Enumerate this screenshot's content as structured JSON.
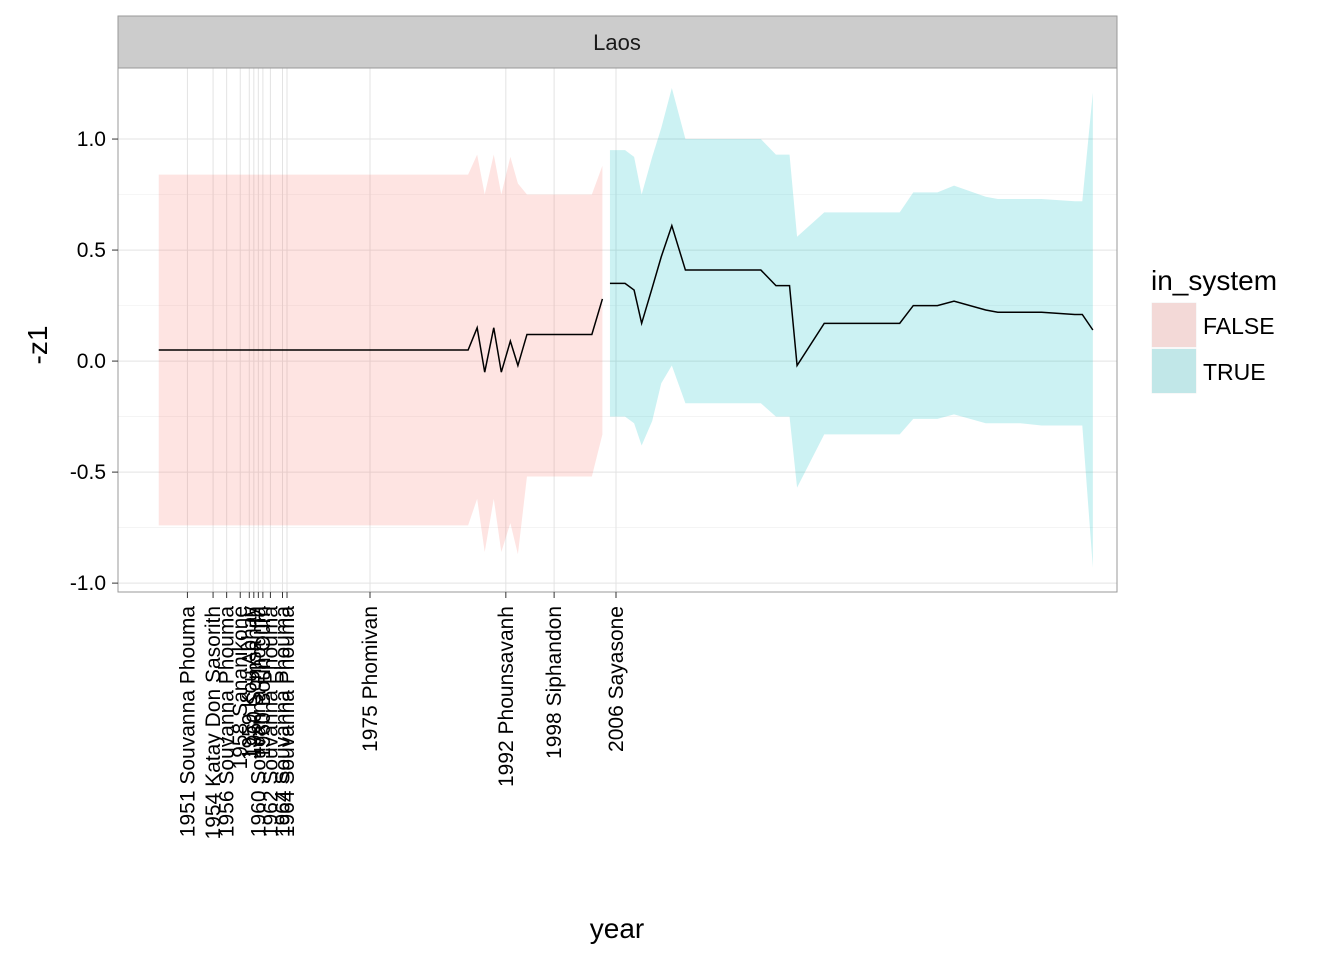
{
  "chart_data": {
    "type": "line",
    "facet": "Laos",
    "xlabel": "year",
    "ylabel": "-z1",
    "xlim": [
      1946.4,
      2012.6
    ],
    "ylim": [
      -1.04,
      1.32
    ],
    "y_ticks": [
      -1.0,
      -0.5,
      0.0,
      0.5,
      1.0
    ],
    "y_tick_labels": [
      "-1.0",
      "-0.5",
      "0.0",
      "0.5",
      "1.0"
    ],
    "x_ticks": [
      {
        "x": 1951,
        "label": "1951 Souvanna Phouma"
      },
      {
        "x": 1952.7,
        "label": "1954 Katay Don Sasorith"
      },
      {
        "x": 1953.6,
        "label": "1956 Souvanna Phouma"
      },
      {
        "x": 1954.5,
        "label": "1958 Sananikone"
      },
      {
        "x": 1955.1,
        "label": "1959 Kou Abhay"
      },
      {
        "x": 1955.4,
        "label": "1960 Somsanith"
      },
      {
        "x": 1955.7,
        "label": "1960 Souvanna Phouma"
      },
      {
        "x": 1956.0,
        "label": "1960 Boun Oum"
      },
      {
        "x": 1956.5,
        "label": "1962 Souvanna Phouma"
      },
      {
        "x": 1957.3,
        "label": "1964 Souvanna Phouma"
      },
      {
        "x": 1957.6,
        "label": "1964 Souvanna Phouma"
      },
      {
        "x": 1963.1,
        "label": "1975 Phomivan"
      },
      {
        "x": 1972.1,
        "label": "1992 Phounsavanh"
      },
      {
        "x": 1975.3,
        "label": "1998 Siphandon"
      },
      {
        "x": 1979.4,
        "label": "2006 Sayasone"
      }
    ],
    "legend": {
      "title": "in_system",
      "position": "right",
      "entries": [
        {
          "label": "FALSE",
          "color": "#F8766D"
        },
        {
          "label": "TRUE",
          "color": "#00BFC4"
        }
      ]
    },
    "grid": true,
    "series": [
      {
        "name": "FALSE",
        "color": "#F8766D",
        "x": [
          1949.1,
          1969.6,
          1970.2,
          1970.7,
          1971.3,
          1971.8,
          1972.4,
          1972.9,
          1973.5,
          1974.1,
          1977.3,
          1977.8,
          1978.5
        ],
        "y": [
          0.05,
          0.05,
          0.15,
          -0.05,
          0.15,
          -0.05,
          0.09,
          -0.02,
          0.12,
          0.12,
          0.12,
          0.12,
          0.28
        ],
        "upper": [
          0.84,
          0.84,
          0.93,
          0.75,
          0.93,
          0.75,
          0.92,
          0.8,
          0.75,
          0.75,
          0.75,
          0.75,
          0.88
        ],
        "lower": [
          -0.74,
          -0.74,
          -0.62,
          -0.86,
          -0.62,
          -0.86,
          -0.73,
          -0.87,
          -0.52,
          -0.52,
          -0.52,
          -0.52,
          -0.33
        ]
      },
      {
        "name": "TRUE",
        "color": "#00BFC4",
        "x": [
          1979.0,
          1980.0,
          1980.6,
          1981.1,
          1981.8,
          1982.4,
          1983.1,
          1984.0,
          1985.0,
          1987.0,
          1989.0,
          1990.0,
          1990.9,
          1991.4,
          1993.2,
          1993.6,
          1994.6,
          1995.1,
          1995.6,
          1996.0,
          1996.6,
          1998.2,
          1999.1,
          2000.7,
          2001.8,
          2003.9,
          2004.7,
          2005.1,
          2006.2,
          2007.6,
          2009.8,
          2010.3,
          2011.0
        ],
        "y": [
          0.35,
          0.35,
          0.32,
          0.17,
          0.33,
          0.47,
          0.61,
          0.41,
          0.41,
          0.41,
          0.41,
          0.34,
          0.34,
          -0.02,
          0.17,
          0.17,
          0.17,
          0.17,
          0.17,
          0.17,
          0.17,
          0.17,
          0.25,
          0.25,
          0.27,
          0.23,
          0.22,
          0.22,
          0.22,
          0.22,
          0.21,
          0.21,
          0.14
        ],
        "upper": [
          0.95,
          0.95,
          0.92,
          0.75,
          0.92,
          1.05,
          1.23,
          1.0,
          1.0,
          1.0,
          1.0,
          0.93,
          0.93,
          0.56,
          0.67,
          0.67,
          0.67,
          0.67,
          0.67,
          0.67,
          0.67,
          0.67,
          0.76,
          0.76,
          0.79,
          0.74,
          0.73,
          0.73,
          0.73,
          0.73,
          0.72,
          0.72,
          1.21
        ],
        "lower": [
          -0.25,
          -0.25,
          -0.28,
          -0.38,
          -0.27,
          -0.1,
          -0.02,
          -0.19,
          -0.19,
          -0.19,
          -0.19,
          -0.25,
          -0.25,
          -0.57,
          -0.33,
          -0.33,
          -0.33,
          -0.33,
          -0.33,
          -0.33,
          -0.33,
          -0.33,
          -0.26,
          -0.26,
          -0.24,
          -0.28,
          -0.28,
          -0.28,
          -0.28,
          -0.29,
          -0.29,
          -0.29,
          -0.93
        ]
      }
    ]
  }
}
